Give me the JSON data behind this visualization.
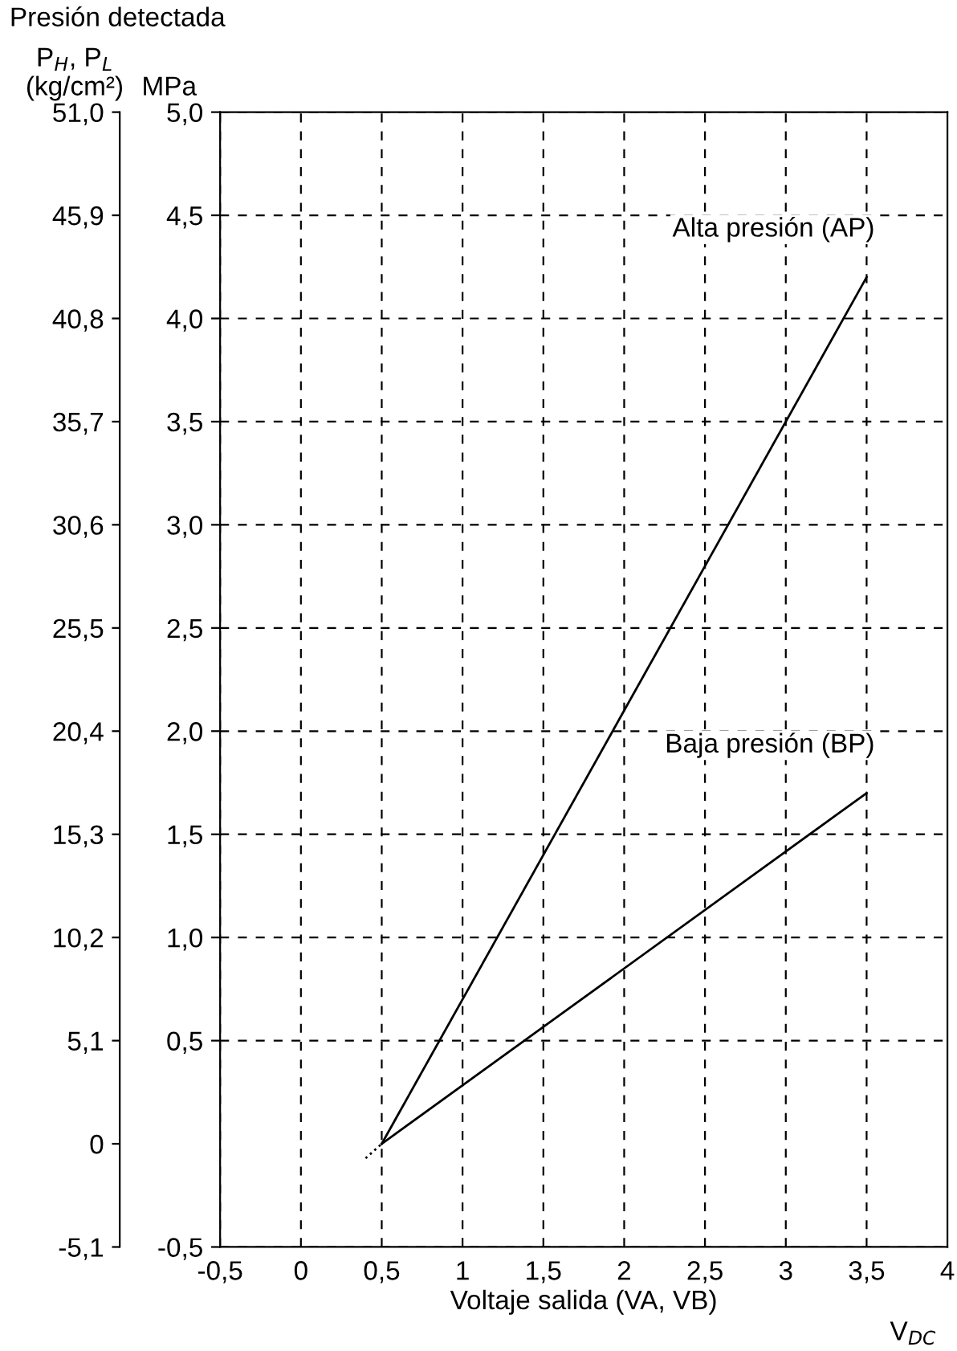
{
  "chart_data": {
    "type": "line",
    "title": "Presión detectada",
    "xlabel": "Voltaje salida (VA, VB)",
    "ylabel": "MPa",
    "y2label": "P$_{H}$, P$_{L}$\n(kg/cm²)",
    "annotations": [
      "V$_{DC}$"
    ],
    "series": [
      {
        "name": "Alta presión (AP)",
        "color": "#000000",
        "x": [
          0.5,
          3.5
        ],
        "values": [
          0,
          4.2
        ],
        "line_style": "solid"
      },
      {
        "name": "Baja presión (BP)",
        "color": "#000000",
        "x": [
          0.5,
          3.5
        ],
        "values": [
          0,
          1.7
        ],
        "line_style": "solid"
      },
      {
        "color": "#000000",
        "x": [
          0.4,
          0.5
        ],
        "values": [
          -0.07,
          0
        ],
        "line_style": "dotted"
      }
    ],
    "xlim": [
      -0.5,
      4
    ],
    "ylim": [
      -0.5,
      5.0
    ],
    "y2lim": [
      -5.1,
      51.0
    ],
    "xticks": [
      {
        "value": -0.5,
        "label": "-0,5"
      },
      0,
      {
        "value": 0.5,
        "label": "0,5"
      },
      1,
      {
        "value": 1.5,
        "label": "1,5"
      },
      2,
      {
        "value": 2.5,
        "label": "2,5"
      },
      3,
      {
        "value": 3.5,
        "label": "3,5"
      },
      4
    ],
    "yticks": [
      {
        "value": -0.5,
        "label": "-0,5"
      },
      {
        "value": 0.5,
        "label": "0,5"
      },
      {
        "value": 1.0,
        "label": "1,0"
      },
      {
        "value": 1.5,
        "label": "1,5"
      },
      {
        "value": 2.0,
        "label": "2,0"
      },
      {
        "value": 2.5,
        "label": "2,5"
      },
      {
        "value": 3.0,
        "label": "3,0"
      },
      {
        "value": 3.5,
        "label": "3,5"
      },
      {
        "value": 4.0,
        "label": "4,0"
      },
      {
        "value": 4.5,
        "label": "4,5"
      },
      {
        "value": 5.0,
        "label": "5,0"
      }
    ],
    "y2ticks": [
      {
        "value": -5.1,
        "label": "-5,1"
      },
      0,
      {
        "value": 5.1,
        "label": "5,1"
      },
      {
        "value": 10.2,
        "label": "10,2"
      },
      {
        "value": 15.3,
        "label": "15,3"
      },
      {
        "value": 20.4,
        "label": "20,4"
      },
      {
        "value": 25.5,
        "label": "25,5"
      },
      {
        "value": 30.6,
        "label": "30,6"
      },
      {
        "value": 35.7,
        "label": "35,7"
      },
      {
        "value": 40.8,
        "label": "40,8"
      },
      {
        "value": 45.9,
        "label": "45,9"
      },
      {
        "value": 51.0,
        "label": "51,0"
      }
    ],
    "grid": true,
    "marker": "none"
  }
}
